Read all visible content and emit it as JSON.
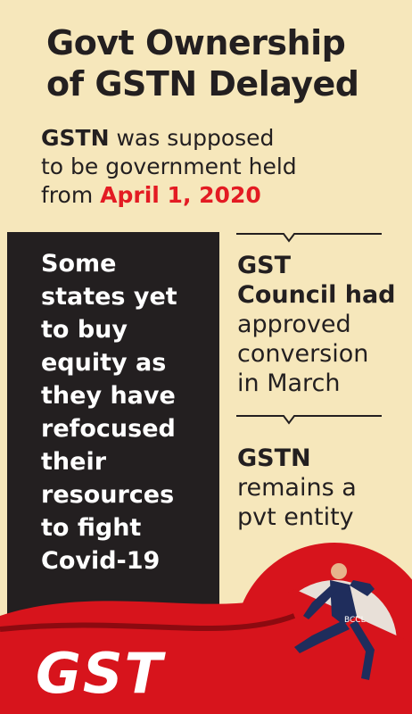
{
  "header": {
    "title_lines": [
      "Govt Ownership",
      "of GSTN Delayed"
    ],
    "subtitle": {
      "lead": "GSTN",
      "line1_rest": "was supposed",
      "line2": "to be government held",
      "line3_start": "from",
      "date": "April 1, 2020"
    }
  },
  "left_box": {
    "lines": [
      "Some",
      "states yet",
      "to buy",
      "equity as",
      "they have",
      "refocused",
      "their",
      "resources",
      "to fight",
      "Covid-19"
    ]
  },
  "right_blocks": [
    {
      "heading_lines": [
        "GST",
        "Council had"
      ],
      "body_lines": [
        "approved",
        "conversion",
        "in March"
      ]
    },
    {
      "heading_lines": [
        "GSTN"
      ],
      "body_lines": [
        "remains a",
        "pvt entity"
      ]
    }
  ],
  "footer": {
    "logo": "GST",
    "credit": "BCCL"
  }
}
